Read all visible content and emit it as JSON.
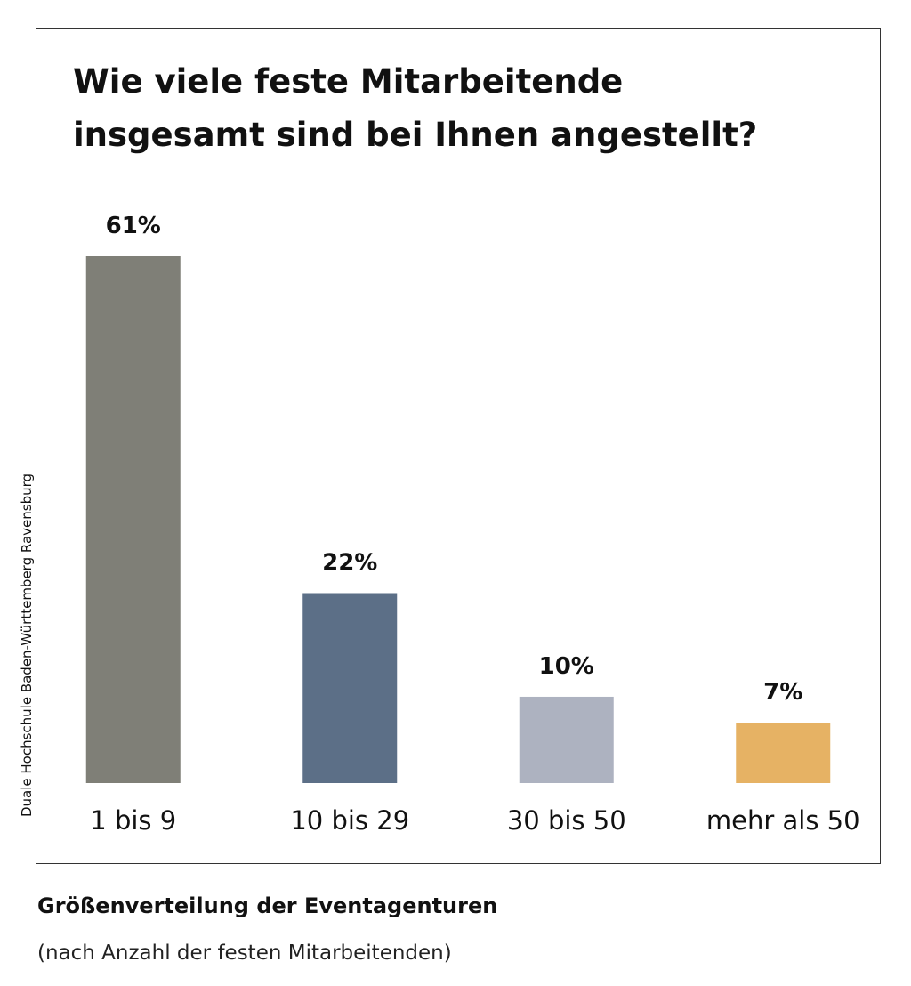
{
  "chart_data": {
    "type": "bar",
    "title": [
      "Wie viele feste Mitarbeitende",
      "insgesamt sind bei Ihnen angestellt?"
    ],
    "categories": [
      "1 bis 9",
      "10 bis 29",
      "30 bis 50",
      "mehr als 50"
    ],
    "values": [
      61,
      22,
      10,
      7
    ],
    "value_labels": [
      "61%",
      "22%",
      "10%",
      "7%"
    ],
    "colors": [
      "#7f7f77",
      "#5c6f87",
      "#adb2c0",
      "#e6b264"
    ],
    "source": "Duale Hochschule Baden-Württemberg Ravensburg",
    "caption": "Größenverteilung der Eventagenturen",
    "caption_note": "(nach Anzahl der festen Mitarbeitenden)"
  }
}
